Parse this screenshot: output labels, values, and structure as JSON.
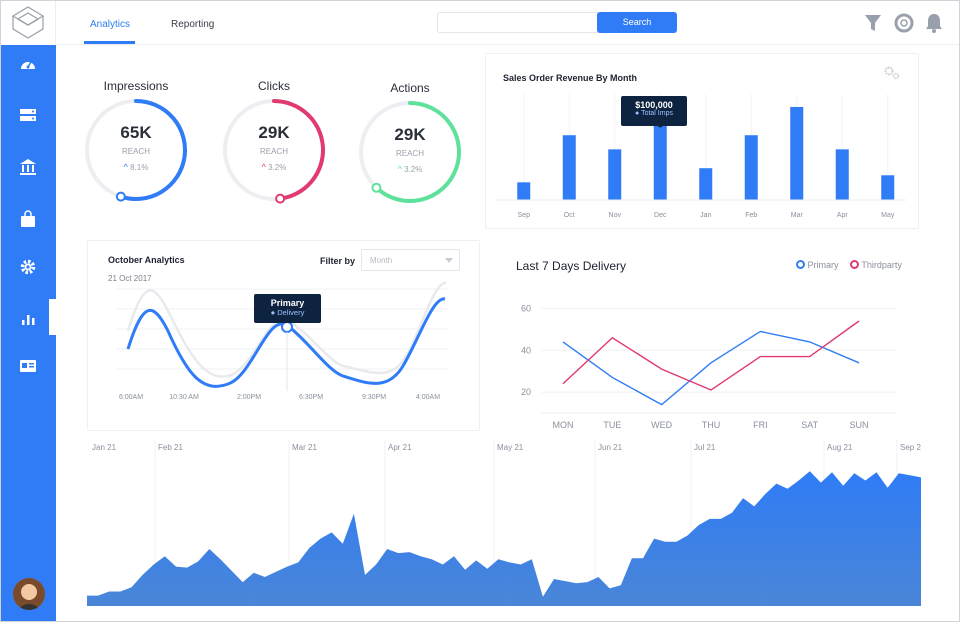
{
  "header": {
    "tabs": [
      {
        "label": "Analytics",
        "active": true
      },
      {
        "label": "Reporting",
        "active": false
      }
    ],
    "search": {
      "value": "",
      "button": "Search"
    }
  },
  "sidebar": {
    "items": [
      "dashboard-icon",
      "server-icon",
      "bank-icon",
      "bag-icon",
      "gear-icon",
      "bar-chart-icon",
      "id-card-icon"
    ],
    "active": 5
  },
  "kpis": [
    {
      "title": "Impressions",
      "value": "65K",
      "reach": "REACH",
      "change": "8.1%",
      "trend": "up",
      "color": "#2f7cf6",
      "progress": 0.55
    },
    {
      "title": "Clicks",
      "value": "29K",
      "reach": "REACH",
      "change": "3.2%",
      "trend": "up",
      "color": "#e03a6e",
      "progress": 0.48
    },
    {
      "title": "Actions",
      "value": "29K",
      "reach": "REACH",
      "change": "3.2%",
      "trend": "up",
      "color": "#5ee19b",
      "progress": 0.62
    }
  ],
  "revenue": {
    "title": "Sales Order Revenue By Month",
    "tooltip": {
      "value": "$100,000",
      "label": "Total Imps"
    },
    "chart_data": {
      "type": "bar",
      "categories": [
        "Sep",
        "Oct",
        "Nov",
        "Dec",
        "Jan",
        "Feb",
        "Mar",
        "Apr",
        "May"
      ],
      "values": [
        15,
        55,
        43,
        65,
        27,
        55,
        79,
        43,
        21
      ]
    }
  },
  "october": {
    "title": "October Analytics",
    "date": "21 Oct 2017",
    "filter_label": "Filter by",
    "filter_placeholder": "Month",
    "tooltip": {
      "title": "Primary",
      "label": "Delivery"
    },
    "x_labels": [
      "6:00AM",
      "10:30 AM",
      "2:00PM",
      "6:30PM",
      "9:30PM",
      "4:00AM"
    ]
  },
  "delivery": {
    "title": "Last 7 Days Delivery",
    "legend": [
      {
        "name": "Primary",
        "color": "#2f7cf6"
      },
      {
        "name": "Thirdparty",
        "color": "#e03a6e"
      }
    ],
    "chart_data": {
      "type": "line",
      "x": [
        "MON",
        "TUE",
        "WED",
        "THU",
        "FRI",
        "SAT",
        "SUN"
      ],
      "yticks": [
        "60",
        "40",
        "20"
      ],
      "ylim": [
        10,
        65
      ],
      "series": [
        {
          "name": "Primary",
          "values": [
            44,
            27,
            14,
            34,
            49,
            44,
            34
          ]
        },
        {
          "name": "Thirdparty",
          "values": [
            24,
            46,
            31,
            21,
            37,
            37,
            54
          ]
        }
      ]
    }
  },
  "area": {
    "months": [
      "Jan 21",
      "Feb 21",
      "Mar 21",
      "Apr 21",
      "May 21",
      "Jun 21",
      "Jul 21",
      "Aug 21",
      "Sep 21"
    ],
    "chart_data": {
      "type": "area",
      "values": [
        10,
        10,
        14,
        14,
        18,
        30,
        40,
        48,
        38,
        37,
        43,
        55,
        45,
        34,
        23,
        32,
        28,
        33,
        38,
        42,
        56,
        65,
        71,
        60,
        89,
        30,
        40,
        55,
        51,
        52,
        48,
        45,
        40,
        48,
        35,
        44,
        36,
        45,
        42,
        40,
        45,
        9,
        26,
        24,
        22,
        23,
        28,
        17,
        20,
        46,
        46,
        65,
        62,
        62,
        68,
        78,
        84,
        84,
        90,
        104,
        96,
        108,
        118,
        113,
        121,
        130,
        119,
        129,
        116,
        128,
        121,
        129,
        114,
        128,
        126,
        124
      ]
    }
  }
}
